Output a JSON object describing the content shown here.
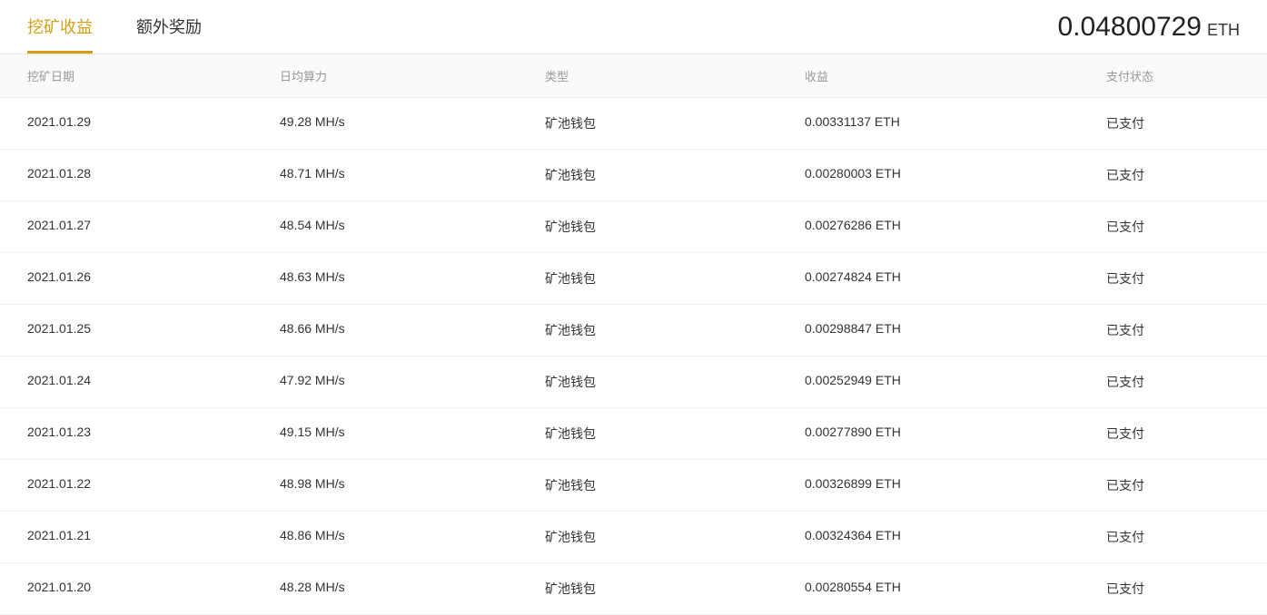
{
  "tabs": {
    "mining_earnings": "挖矿收益",
    "extra_rewards": "额外奖励"
  },
  "balance": {
    "amount": "0.04800729",
    "currency": "ETH"
  },
  "table": {
    "columns": {
      "date": "挖矿日期",
      "hashrate": "日均算力",
      "type": "类型",
      "earnings": "收益",
      "status": "支付状态"
    },
    "rows": [
      {
        "date": "2021.01.29",
        "hashrate": "49.28 MH/s",
        "type": "矿池钱包",
        "earnings": "0.00331137 ETH",
        "status": "已支付"
      },
      {
        "date": "2021.01.28",
        "hashrate": "48.71 MH/s",
        "type": "矿池钱包",
        "earnings": "0.00280003 ETH",
        "status": "已支付"
      },
      {
        "date": "2021.01.27",
        "hashrate": "48.54 MH/s",
        "type": "矿池钱包",
        "earnings": "0.00276286 ETH",
        "status": "已支付"
      },
      {
        "date": "2021.01.26",
        "hashrate": "48.63 MH/s",
        "type": "矿池钱包",
        "earnings": "0.00274824 ETH",
        "status": "已支付"
      },
      {
        "date": "2021.01.25",
        "hashrate": "48.66 MH/s",
        "type": "矿池钱包",
        "earnings": "0.00298847 ETH",
        "status": "已支付"
      },
      {
        "date": "2021.01.24",
        "hashrate": "47.92 MH/s",
        "type": "矿池钱包",
        "earnings": "0.00252949 ETH",
        "status": "已支付"
      },
      {
        "date": "2021.01.23",
        "hashrate": "49.15 MH/s",
        "type": "矿池钱包",
        "earnings": "0.00277890 ETH",
        "status": "已支付"
      },
      {
        "date": "2021.01.22",
        "hashrate": "48.98 MH/s",
        "type": "矿池钱包",
        "earnings": "0.00326899 ETH",
        "status": "已支付"
      },
      {
        "date": "2021.01.21",
        "hashrate": "48.86 MH/s",
        "type": "矿池钱包",
        "earnings": "0.00324364 ETH",
        "status": "已支付"
      },
      {
        "date": "2021.01.20",
        "hashrate": "48.28 MH/s",
        "type": "矿池钱包",
        "earnings": "0.00280554 ETH",
        "status": "已支付"
      }
    ]
  },
  "colors": {
    "accent": "#d4a017",
    "text_primary": "#333333",
    "text_secondary": "#999999",
    "border": "#e5e5e5",
    "row_border": "#f0f0f0",
    "header_bg": "#fafafa",
    "background": "#ffffff"
  }
}
